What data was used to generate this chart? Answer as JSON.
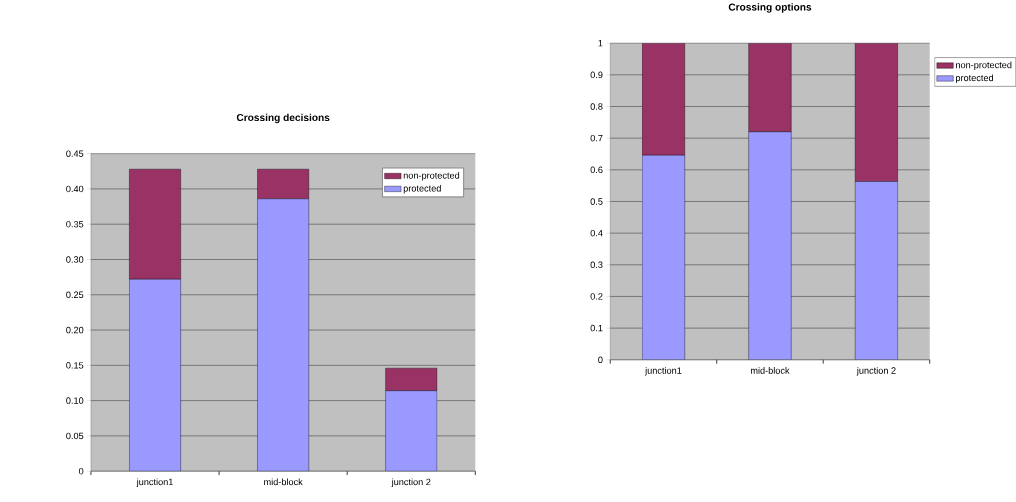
{
  "chart_data": [
    {
      "type": "bar",
      "stacked": true,
      "title": "Crossing decisions",
      "categories": [
        "junction1",
        "mid-block",
        "junction 2"
      ],
      "series": [
        {
          "name": "protected",
          "color": "#9999ff",
          "values": [
            0.272,
            0.386,
            0.114
          ]
        },
        {
          "name": "non-protected",
          "color": "#993366",
          "values": [
            0.156,
            0.042,
            0.032
          ]
        }
      ],
      "ylim": [
        0,
        0.45
      ],
      "yticks": [
        0,
        0.05,
        {
          "value": 0.1,
          "label": "0.10"
        },
        0.15,
        {
          "value": 0.2,
          "label": "0.20"
        },
        0.25,
        {
          "value": 0.3,
          "label": "0.30"
        },
        0.35,
        {
          "value": 0.4,
          "label": "0.40"
        },
        0.45
      ],
      "grid": "y",
      "legend": "top right"
    },
    {
      "type": "bar",
      "stacked": true,
      "title": "Crossing options",
      "categories": [
        "junction1",
        "mid-block",
        "junction 2"
      ],
      "series": [
        {
          "name": "protected",
          "color": "#9999ff",
          "values": [
            0.646,
            0.72,
            0.563
          ]
        },
        {
          "name": "non-protected",
          "color": "#993366",
          "values": [
            0.354,
            0.28,
            0.437
          ]
        }
      ],
      "ylim": [
        0,
        1
      ],
      "yticks": [
        0,
        0.1,
        0.2,
        0.3,
        0.4,
        0.5,
        0.6,
        0.7,
        0.8,
        0.9,
        1
      ],
      "grid": "y",
      "legend": "right"
    }
  ]
}
